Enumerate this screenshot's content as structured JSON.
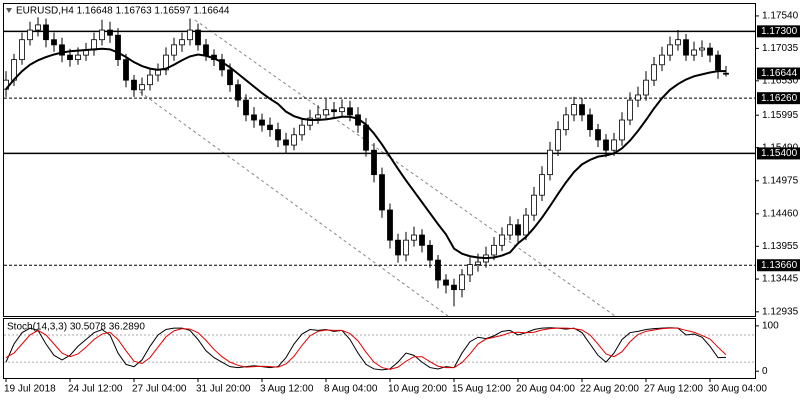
{
  "chart_data": [
    {
      "type": "candlestick",
      "title": "EURUSD,H4  1.16648 1.16763 1.16597 1.16644",
      "categories": [
        "19 Jul 2018",
        null,
        null,
        null,
        null,
        null,
        null,
        null,
        "24 Jul 12:00",
        null,
        null,
        null,
        null,
        null,
        null,
        null,
        "27 Jul 04:00",
        null,
        null,
        null,
        null,
        null,
        null,
        null,
        "31 Jul 20:00",
        null,
        null,
        null,
        null,
        null,
        null,
        null,
        "3 Aug 12:00",
        null,
        null,
        null,
        null,
        null,
        null,
        null,
        "8 Aug 04:00",
        null,
        null,
        null,
        null,
        null,
        null,
        null,
        "10 Aug 20:00",
        null,
        null,
        null,
        null,
        null,
        null,
        null,
        "15 Aug 12:00",
        null,
        null,
        null,
        null,
        null,
        null,
        null,
        "20 Aug 04:00",
        null,
        null,
        null,
        null,
        null,
        null,
        null,
        "22 Aug 20:00",
        null,
        null,
        null,
        null,
        null,
        null,
        null,
        "27 Aug 12:00",
        null,
        null,
        null,
        null,
        null,
        null,
        null,
        "30 Aug 04:00",
        null,
        null
      ],
      "open": [
        1.164,
        1.1654,
        1.1686,
        1.1717,
        1.1732,
        1.174,
        1.1717,
        1.1709,
        1.1693,
        1.1686,
        1.1693,
        1.1701,
        1.1717,
        1.1732,
        1.1724,
        1.1686,
        1.1654,
        1.1639,
        1.1647,
        1.1662,
        1.167,
        1.1693,
        1.1709,
        1.1717,
        1.1732,
        1.1709,
        1.1693,
        1.1686,
        1.167,
        1.1647,
        1.1623,
        1.16,
        1.1592,
        1.1584,
        1.1577,
        1.1561,
        1.1553,
        1.1569,
        1.1584,
        1.1595,
        1.16,
        1.1608,
        1.1605,
        1.1611,
        1.16,
        1.1584,
        1.1545,
        1.1507,
        1.1452,
        1.1405,
        1.1382,
        1.1405,
        1.1413,
        1.1397,
        1.1374,
        1.1343,
        1.1335,
        1.1328,
        1.1351,
        1.1367,
        1.1371,
        1.1382,
        1.1397,
        1.1413,
        1.1429,
        1.1413,
        1.1444,
        1.1475,
        1.1507,
        1.1545,
        1.1577,
        1.16,
        1.1616,
        1.16,
        1.1577,
        1.1561,
        1.1545,
        1.1561,
        1.1592,
        1.1623,
        1.1631,
        1.1654,
        1.1678,
        1.1693,
        1.1709,
        1.1717,
        1.1693,
        1.1701,
        1.1704,
        1.1693,
        1.16648
      ],
      "high": [
        1.1668,
        1.1695,
        1.1728,
        1.1745,
        1.1752,
        1.175,
        1.1728,
        1.172,
        1.1703,
        1.1705,
        1.1712,
        1.1728,
        1.1748,
        1.1745,
        1.1735,
        1.1695,
        1.1662,
        1.1658,
        1.1672,
        1.168,
        1.1705,
        1.172,
        1.1728,
        1.175,
        1.1742,
        1.1718,
        1.1702,
        1.1695,
        1.168,
        1.1655,
        1.1632,
        1.1612,
        1.1602,
        1.1596,
        1.1588,
        1.1572,
        1.158,
        1.1595,
        1.1608,
        1.1615,
        1.1625,
        1.162,
        1.1624,
        1.1622,
        1.1612,
        1.1595,
        1.1556,
        1.1518,
        1.1462,
        1.1415,
        1.1418,
        1.1426,
        1.1422,
        1.1405,
        1.1382,
        1.1352,
        1.1345,
        1.136,
        1.1378,
        1.1384,
        1.1395,
        1.141,
        1.1425,
        1.1442,
        1.1438,
        1.1455,
        1.1488,
        1.152,
        1.1558,
        1.159,
        1.1612,
        1.1628,
        1.1626,
        1.161,
        1.1586,
        1.157,
        1.1572,
        1.1604,
        1.1635,
        1.1644,
        1.1668,
        1.169,
        1.1706,
        1.1722,
        1.1732,
        1.1726,
        1.1714,
        1.1716,
        1.1712,
        1.17,
        1.16763
      ],
      "low": [
        1.1628,
        1.1645,
        1.1678,
        1.1708,
        1.1722,
        1.1705,
        1.1698,
        1.1682,
        1.1675,
        1.1678,
        1.1684,
        1.1692,
        1.1708,
        1.1712,
        1.1676,
        1.1643,
        1.1628,
        1.163,
        1.1638,
        1.1652,
        1.1662,
        1.1684,
        1.1698,
        1.1708,
        1.17,
        1.1684,
        1.1676,
        1.166,
        1.1636,
        1.1612,
        1.159,
        1.158,
        1.1574,
        1.1566,
        1.155,
        1.154,
        1.1545,
        1.156,
        1.1576,
        1.1586,
        1.1592,
        1.1596,
        1.1596,
        1.159,
        1.1572,
        1.1535,
        1.1495,
        1.144,
        1.1392,
        1.137,
        1.1372,
        1.1395,
        1.1386,
        1.1362,
        1.133,
        1.1322,
        1.1302,
        1.1316,
        1.134,
        1.1356,
        1.1362,
        1.1374,
        1.1388,
        1.1405,
        1.1402,
        1.1405,
        1.1435,
        1.1466,
        1.1498,
        1.1536,
        1.1568,
        1.159,
        1.159,
        1.1566,
        1.155,
        1.1534,
        1.1536,
        1.1552,
        1.1584,
        1.1612,
        1.1622,
        1.1645,
        1.1668,
        1.1684,
        1.17,
        1.1684,
        1.1684,
        1.169,
        1.1682,
        1.1656,
        1.16597
      ],
      "close": [
        1.1654,
        1.1686,
        1.1717,
        1.1732,
        1.174,
        1.1717,
        1.1709,
        1.1693,
        1.1686,
        1.1693,
        1.1701,
        1.1717,
        1.1732,
        1.1724,
        1.1686,
        1.1654,
        1.1639,
        1.1647,
        1.1662,
        1.167,
        1.1693,
        1.1709,
        1.1717,
        1.1732,
        1.1709,
        1.1693,
        1.1686,
        1.167,
        1.1647,
        1.1623,
        1.16,
        1.1592,
        1.1584,
        1.1577,
        1.1561,
        1.1553,
        1.1569,
        1.1584,
        1.1595,
        1.16,
        1.1608,
        1.1605,
        1.1611,
        1.16,
        1.1584,
        1.1545,
        1.1507,
        1.1452,
        1.1405,
        1.1382,
        1.1405,
        1.1413,
        1.1397,
        1.1374,
        1.1343,
        1.1335,
        1.1328,
        1.1351,
        1.1367,
        1.1371,
        1.1382,
        1.1397,
        1.1413,
        1.1429,
        1.1413,
        1.1444,
        1.1475,
        1.1507,
        1.1545,
        1.1577,
        1.16,
        1.1616,
        1.16,
        1.1577,
        1.1561,
        1.1545,
        1.1561,
        1.1592,
        1.1623,
        1.1631,
        1.1654,
        1.1678,
        1.1693,
        1.1709,
        1.1717,
        1.1693,
        1.1701,
        1.1704,
        1.1693,
        1.167,
        1.16644
      ],
      "up_color": "#ffffff",
      "down_color": "#000000",
      "ma": {
        "color": "#000000",
        "values": [
          1.164,
          1.1655,
          1.1668,
          1.1678,
          1.1685,
          1.169,
          1.1694,
          1.1697,
          1.1699,
          1.17,
          1.1701,
          1.1702,
          1.1703,
          1.1702,
          1.1697,
          1.169,
          1.1682,
          1.1676,
          1.1672,
          1.167,
          1.1672,
          1.1678,
          1.1685,
          1.1691,
          1.1694,
          1.1692,
          1.1688,
          1.1682,
          1.1674,
          1.1664,
          1.1654,
          1.1644,
          1.1634,
          1.1625,
          1.1617,
          1.1605,
          1.1598,
          1.1594,
          1.1592,
          1.1592,
          1.1593,
          1.1595,
          1.1597,
          1.1597,
          1.1594,
          1.1585,
          1.1571,
          1.1554,
          1.1535,
          1.1516,
          1.1498,
          1.1481,
          1.1464,
          1.1447,
          1.143,
          1.1414,
          1.1392,
          1.1384,
          1.138,
          1.1378,
          1.1377,
          1.1378,
          1.1381,
          1.1386,
          1.14,
          1.141,
          1.1424,
          1.144,
          1.1458,
          1.1477,
          1.1495,
          1.1511,
          1.1523,
          1.153,
          1.1535,
          1.1537,
          1.154,
          1.1548,
          1.156,
          1.1575,
          1.1592,
          1.161,
          1.1626,
          1.1639,
          1.1648,
          1.1655,
          1.166,
          1.1663,
          1.1666,
          1.1668,
          1.1668
        ]
      },
      "ylim": [
        1.1287,
        1.1771
      ],
      "yticks": [
        {
          "value": 1.1754,
          "label": "1.17540"
        },
        {
          "value": 1.17035,
          "label": "1.17035"
        },
        {
          "value": 1.1653,
          "label": "1.16530"
        },
        {
          "value": 1.15995,
          "label": "1.15995"
        },
        {
          "value": 1.1549,
          "label": "1.15490"
        },
        {
          "value": 1.14975,
          "label": "1.14975"
        },
        {
          "value": 1.1446,
          "label": "1.14460"
        },
        {
          "value": 1.13955,
          "label": "1.13955"
        },
        {
          "value": 1.13445,
          "label": "1.13445"
        },
        {
          "value": 1.12935,
          "label": "1.12935"
        }
      ],
      "levels": [
        {
          "value": 1.173,
          "label": "1.17300",
          "style": "solid"
        },
        {
          "value": 1.1626,
          "label": "1.16260",
          "style": "dashed"
        },
        {
          "value": 1.154,
          "label": "1.15400",
          "style": "solid"
        },
        {
          "value": 1.1366,
          "label": "1.13660",
          "style": "dashed"
        }
      ]
    },
    {
      "type": "line",
      "title": "Stoch(14,3,3) 30.5078 36.2890",
      "series": [
        {
          "color": "#000000",
          "values": [
            20,
            60,
            85,
            95,
            90,
            60,
            35,
            25,
            35,
            55,
            70,
            85,
            92,
            80,
            40,
            15,
            10,
            25,
            55,
            80,
            92,
            95,
            95,
            90,
            70,
            45,
            30,
            20,
            10,
            8,
            10,
            12,
            10,
            8,
            10,
            30,
            60,
            82,
            92,
            90,
            92,
            88,
            90,
            70,
            40,
            15,
            5,
            3,
            5,
            20,
            40,
            35,
            20,
            8,
            5,
            10,
            8,
            40,
            65,
            75,
            72,
            78,
            88,
            90,
            80,
            85,
            92,
            95,
            96,
            95,
            93,
            95,
            85,
            60,
            35,
            20,
            40,
            70,
            85,
            88,
            92,
            94,
            95,
            96,
            95,
            80,
            82,
            75,
            55,
            30,
            30.5078
          ]
        },
        {
          "color": "#e00000",
          "values": [
            30,
            40,
            60,
            80,
            90,
            80,
            60,
            40,
            32,
            38,
            53,
            70,
            82,
            86,
            70,
            45,
            22,
            17,
            30,
            53,
            76,
            89,
            94,
            93,
            85,
            68,
            48,
            32,
            20,
            13,
            9,
            10,
            11,
            10,
            9,
            16,
            33,
            57,
            78,
            88,
            91,
            90,
            90,
            83,
            67,
            42,
            20,
            8,
            4,
            9,
            22,
            32,
            32,
            21,
            11,
            8,
            8,
            19,
            38,
            60,
            71,
            75,
            79,
            85,
            86,
            85,
            86,
            91,
            94,
            95,
            95,
            94,
            91,
            80,
            60,
            38,
            32,
            43,
            65,
            81,
            88,
            91,
            94,
            95,
            95,
            90,
            86,
            79,
            71,
            53,
            36.289
          ]
        }
      ],
      "ylim": [
        -15,
        113
      ],
      "yticks": [
        100,
        0
      ],
      "levels": [
        80,
        20
      ]
    }
  ]
}
